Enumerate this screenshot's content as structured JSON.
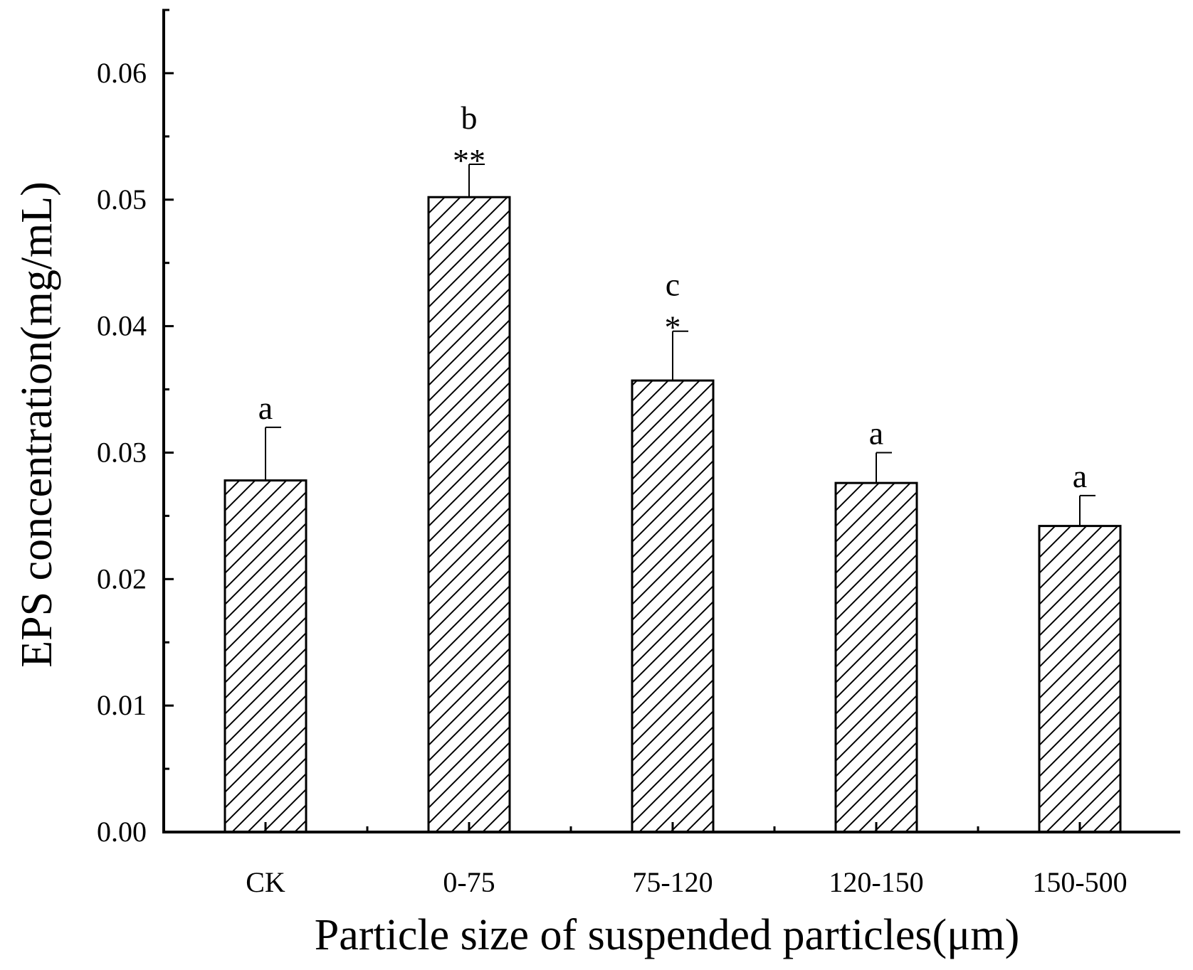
{
  "chart_data": {
    "type": "bar",
    "title": "",
    "xlabel": "Particle size of suspended particles(μm)",
    "ylabel": "EPS concentration(mg/mL)",
    "ylim": [
      0,
      0.065
    ],
    "yticks": [
      "0.00",
      "0.01",
      "0.02",
      "0.03",
      "0.04",
      "0.05",
      "0.06"
    ],
    "ytick_values": [
      0,
      0.01,
      0.02,
      0.03,
      0.04,
      0.05,
      0.06
    ],
    "categories": [
      "CK",
      "0-75",
      "75-120",
      "120-150",
      "150-500"
    ],
    "values": [
      0.0278,
      0.0502,
      0.0357,
      0.0276,
      0.0242
    ],
    "error": [
      0.0042,
      0.0026,
      0.0039,
      0.0024,
      0.0024
    ],
    "significance_letters": [
      "a",
      "b",
      "c",
      "a",
      "a"
    ],
    "asterisks": [
      "",
      "**",
      "*",
      "",
      ""
    ],
    "grid": false,
    "pattern": "diagonal-hatch",
    "colors": {
      "bar_fill": "#ffffff",
      "hatch": "#000000",
      "axis": "#000000"
    }
  }
}
